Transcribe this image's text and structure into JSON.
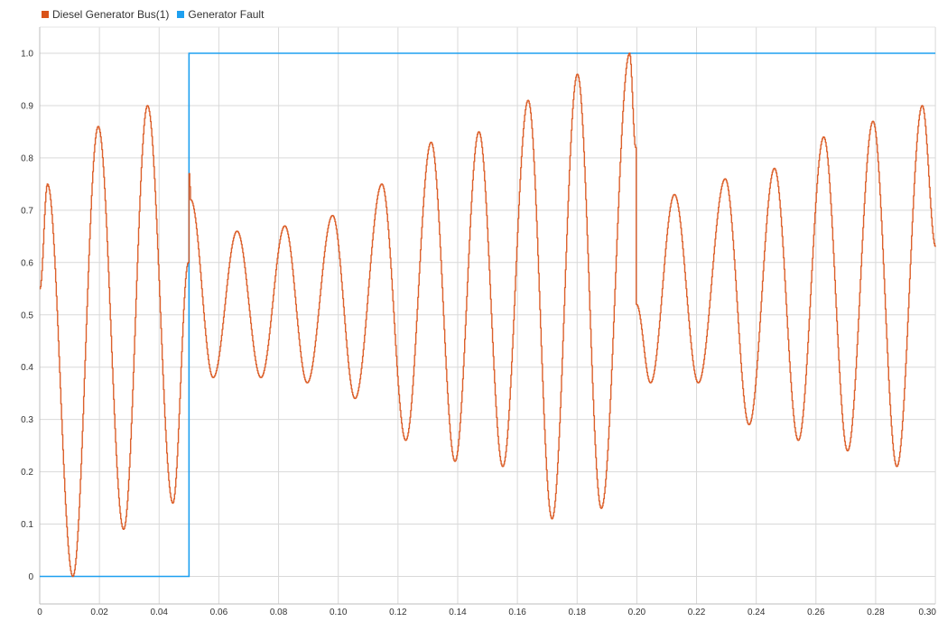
{
  "legend": {
    "items": [
      {
        "label": "Diesel Generator Bus(1)",
        "color": "#D95319"
      },
      {
        "label": "Generator Fault",
        "color": "#1EA0F0"
      }
    ]
  },
  "chart_data": {
    "type": "line",
    "title": "",
    "xlabel": "",
    "ylabel": "",
    "xlim": [
      0,
      0.3
    ],
    "ylim": [
      -0.05,
      1.05
    ],
    "x_ticks": [
      0,
      0.02,
      0.04,
      0.06,
      0.08,
      0.1,
      0.12,
      0.14,
      0.16,
      0.18,
      0.2,
      0.22,
      0.24,
      0.26,
      0.28,
      0.3
    ],
    "x_tick_labels": [
      "0",
      "0.02",
      "0.04",
      "0.06",
      "0.08",
      "0.10",
      "0.12",
      "0.14",
      "0.16",
      "0.18",
      "0.20",
      "0.22",
      "0.24",
      "0.26",
      "0.28",
      "0.30"
    ],
    "y_ticks": [
      0,
      0.1,
      0.2,
      0.3,
      0.4,
      0.5,
      0.6,
      0.7,
      0.8,
      0.9,
      1.0
    ],
    "y_tick_labels": [
      "0",
      "0.1",
      "0.2",
      "0.3",
      "0.4",
      "0.5",
      "0.6",
      "0.7",
      "0.8",
      "0.9",
      "1.0"
    ],
    "grid": true,
    "legend_position": "top-left",
    "series": [
      {
        "name": "Diesel Generator Bus(1)",
        "color": "#D95319",
        "x": [
          0,
          0.0025,
          0.011,
          0.0195,
          0.028,
          0.036,
          0.0445,
          0.0497,
          0.05,
          0.0505,
          0.058,
          0.066,
          0.074,
          0.082,
          0.0895,
          0.098,
          0.1055,
          0.1145,
          0.1225,
          0.131,
          0.139,
          0.147,
          0.155,
          0.1635,
          0.1715,
          0.18,
          0.188,
          0.1975,
          0.1995,
          0.1998,
          0.2045,
          0.2125,
          0.2205,
          0.2295,
          0.2375,
          0.246,
          0.254,
          0.2625,
          0.2705,
          0.279,
          0.287,
          0.2955,
          0.3
        ],
        "y": [
          0.55,
          0.75,
          0.0,
          0.86,
          0.09,
          0.9,
          0.14,
          0.6,
          0.77,
          0.72,
          0.38,
          0.66,
          0.38,
          0.67,
          0.37,
          0.69,
          0.34,
          0.75,
          0.26,
          0.83,
          0.22,
          0.85,
          0.21,
          0.91,
          0.11,
          0.96,
          0.13,
          1.0,
          0.82,
          0.52,
          0.37,
          0.73,
          0.37,
          0.76,
          0.29,
          0.78,
          0.26,
          0.84,
          0.24,
          0.87,
          0.21,
          0.9,
          0.63
        ]
      },
      {
        "name": "Generator Fault",
        "color": "#1EA0F0",
        "x": [
          0,
          0.05,
          0.05,
          0.3
        ],
        "y": [
          0,
          0,
          1,
          1
        ]
      }
    ]
  }
}
